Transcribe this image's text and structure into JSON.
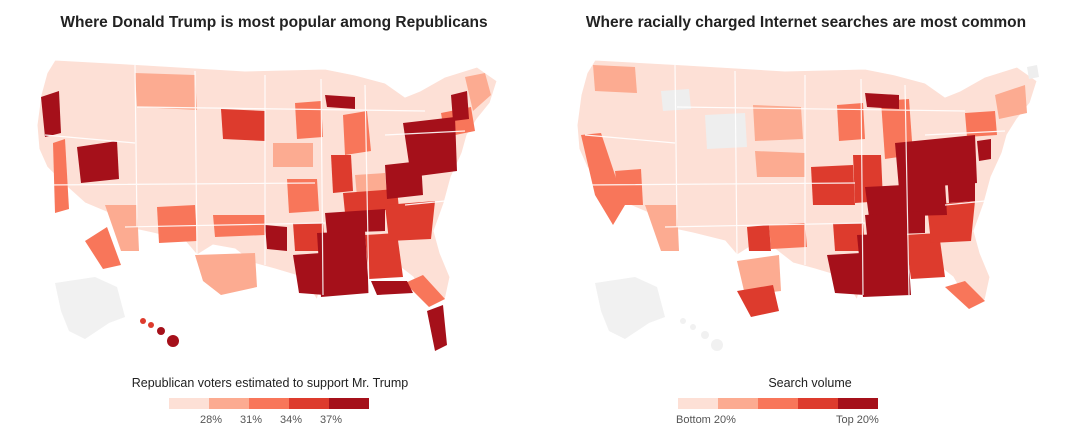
{
  "left_panel": {
    "title": "Where Donald Trump is most popular among Republicans",
    "legend_title": "Republican voters estimated to support Mr. Trump",
    "legend_ticks": [
      "28%",
      "31%",
      "34%",
      "37%"
    ],
    "colors": [
      "#fde0d6",
      "#fcab91",
      "#f8765a",
      "#dd3b2d",
      "#a5101a"
    ]
  },
  "right_panel": {
    "title": "Where racially charged Internet searches are most common",
    "legend_title": "Search volume",
    "legend_low": "Bottom 20%",
    "legend_high": "Top 20%",
    "colors": [
      "#fde0d6",
      "#fcab91",
      "#f8765a",
      "#dd3b2d",
      "#a5101a"
    ]
  }
}
